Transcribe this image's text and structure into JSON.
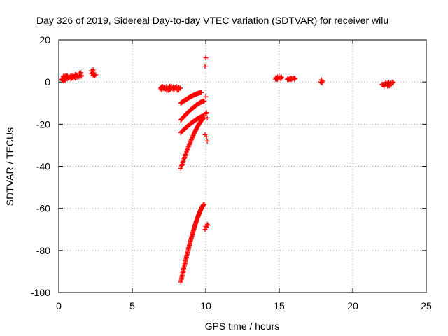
{
  "chart_data": {
    "type": "scatter",
    "title": "Day 326 of 2019, Sidereal Day-to-day VTEC variation (SDTVAR) for receiver wilu",
    "xlabel": "GPS time / hours",
    "ylabel": "SDTVAR / TECUs",
    "xlim": [
      0,
      25
    ],
    "ylim": [
      -100,
      20
    ],
    "xticks": [
      0,
      5,
      10,
      15,
      20,
      25
    ],
    "yticks": [
      -100,
      -80,
      -60,
      -40,
      -20,
      0,
      20
    ],
    "grid": true,
    "marker": "+",
    "color": "#ff0000",
    "series": [
      {
        "name": "SDTVAR",
        "clusters": [
          {
            "id": "early-cluster",
            "x_range": [
              0.2,
              1.6
            ],
            "y_range": [
              0,
              4
            ],
            "count": 60
          },
          {
            "id": "hour-2-cluster",
            "x_range": [
              2.2,
              2.6
            ],
            "y_range": [
              3,
              6
            ],
            "count": 12
          },
          {
            "id": "hour-7-band",
            "x_range": [
              6.9,
              8.3
            ],
            "y_range": [
              -4,
              -2
            ],
            "count": 50
          },
          {
            "id": "arc-a",
            "from": [
              8.3,
              -10
            ],
            "to": [
              9.7,
              -5
            ],
            "count": 40
          },
          {
            "id": "arc-b",
            "from": [
              8.3,
              -18
            ],
            "to": [
              9.9,
              -9
            ],
            "count": 40
          },
          {
            "id": "arc-c",
            "from": [
              8.3,
              -24
            ],
            "to": [
              9.9,
              -16
            ],
            "count": 40
          },
          {
            "id": "arc-d",
            "from": [
              8.3,
              -41
            ],
            "to": [
              9.9,
              -17
            ],
            "count": 50
          },
          {
            "id": "arc-e",
            "from": [
              8.3,
              -95
            ],
            "to": [
              9.9,
              -58
            ],
            "count": 80
          },
          {
            "id": "outliers-10h",
            "x_range": [
              9.9,
              10.2
            ],
            "y_range": [
              -70,
              12
            ],
            "count": 14
          },
          {
            "id": "hour-15-cluster",
            "x_range": [
              14.7,
              15.2
            ],
            "y_range": [
              1,
              2.5
            ],
            "count": 15
          },
          {
            "id": "hour-16-cluster",
            "x_range": [
              15.5,
              16.1
            ],
            "y_range": [
              1,
              2
            ],
            "count": 15
          },
          {
            "id": "hour-18-cluster",
            "x_range": [
              17.8,
              18.0
            ],
            "y_range": [
              -0.5,
              1
            ],
            "count": 6
          },
          {
            "id": "hour-22-cluster",
            "x_range": [
              22.0,
              22.8
            ],
            "y_range": [
              -2,
              0
            ],
            "count": 20
          }
        ]
      }
    ]
  }
}
